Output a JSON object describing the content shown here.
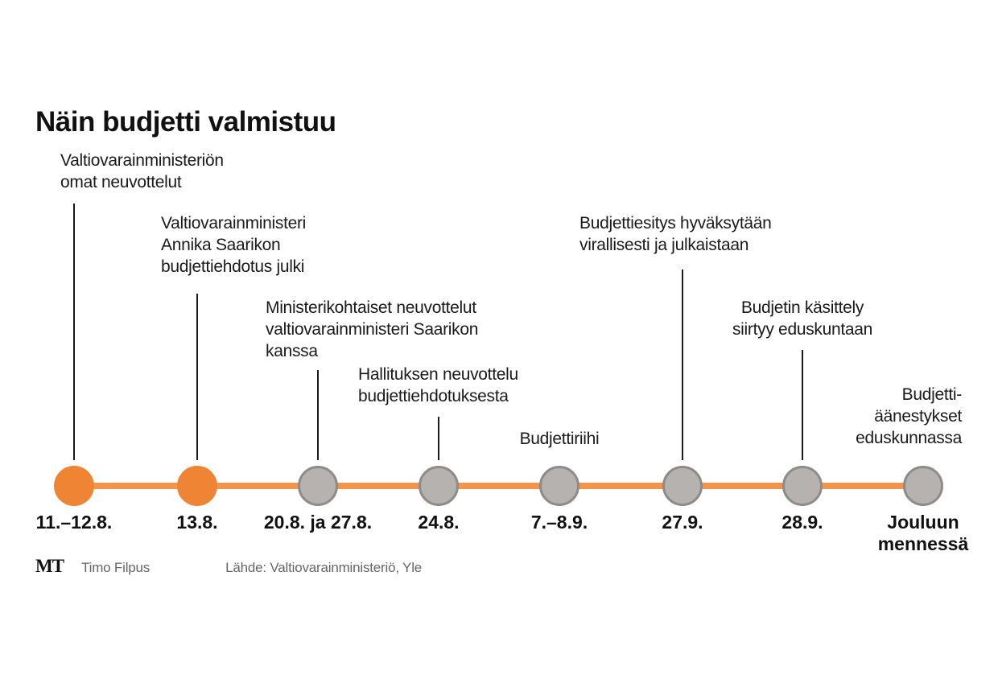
{
  "title": "Näin budjetti valmistuu",
  "colors": {
    "accent_orange": "#ee8434",
    "line_orange": "#f2944a",
    "node_gray_fill": "#b5b2af",
    "node_gray_border": "#8e8b89",
    "connector_black": "#1a1a1a"
  },
  "timeline": {
    "events": [
      {
        "date": "11.–12.8.",
        "label": "Valtiovarainministeriön\nomat neuvottelut",
        "highlighted": true
      },
      {
        "date": "13.8.",
        "label": "Valtiovarainministeri\nAnnika Saarikon\nbudjettiehdotus julki",
        "highlighted": true
      },
      {
        "date": "20.8. ja 27.8.",
        "label": "Ministerikohtaiset neuvottelut\nvaltiovarainministeri Saarikon\nkanssa",
        "highlighted": false
      },
      {
        "date": "24.8.",
        "label": "Hallituksen neuvottelu\nbudjettiehdotuksesta",
        "highlighted": false
      },
      {
        "date": "7.–8.9.",
        "label": "Budjettiriihi",
        "highlighted": false
      },
      {
        "date": "27.9.",
        "label": "Budjettiesitys hyväksytään\nvirallisesti ja julkaistaan",
        "highlighted": false
      },
      {
        "date": "28.9.",
        "label": "Budjetin käsittely\nsiirtyy eduskuntaan",
        "highlighted": false
      },
      {
        "date": "Jouluun\nmennessä",
        "label": "Budjetti-\näänestykset\neduskunnassa",
        "highlighted": false
      }
    ]
  },
  "footer": {
    "logo": "MT",
    "author": "Timo Filpus",
    "source": "Lähde: Valtiovarainministeriö, Yle"
  }
}
